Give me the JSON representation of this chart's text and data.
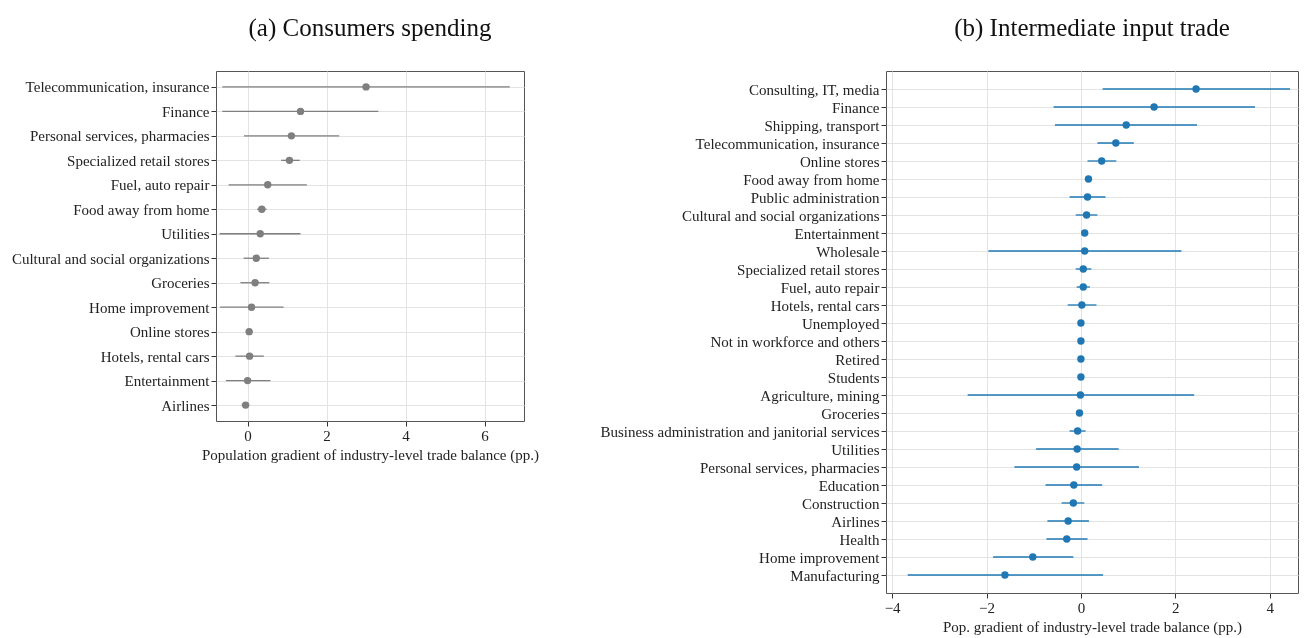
{
  "chart_data": [
    {
      "type": "scatter",
      "orientation": "horizontal",
      "title": "(a) Consumers spending",
      "xlabel": "Population gradient of industry-level trade balance (pp.)",
      "color": "#7f7f7f",
      "marker": "circle",
      "grid": true,
      "xlim": [
        -0.8,
        7.0
      ],
      "xticks": [
        0,
        2,
        4,
        6
      ],
      "categories": [
        "Telecommunication, insurance",
        "Finance",
        "Personal services, pharmacies",
        "Specialized retail stores",
        "Fuel, auto repair",
        "Food away from home",
        "Utilities",
        "Cultural and social organizations",
        "Groceries",
        "Home improvement",
        "Online stores",
        "Hotels, rental cars",
        "Entertainment",
        "Airlines"
      ],
      "values": [
        3.0,
        1.34,
        1.11,
        1.06,
        0.51,
        0.36,
        0.32,
        0.22,
        0.19,
        0.1,
        0.04,
        0.05,
        0.0,
        -0.05
      ],
      "errors": [
        [
          -0.64,
          6.64
        ],
        [
          -0.64,
          3.31
        ],
        [
          -0.09,
          2.32
        ],
        [
          0.85,
          1.32
        ],
        [
          -0.48,
          1.5
        ],
        [
          0.24,
          0.48
        ],
        [
          -0.71,
          1.34
        ],
        [
          -0.1,
          0.54
        ],
        [
          -0.18,
          0.55
        ],
        [
          -0.7,
          0.91
        ],
        [
          -0.04,
          0.12
        ],
        [
          -0.31,
          0.41
        ],
        [
          -0.55,
          0.58
        ],
        [
          -0.15,
          0.04
        ]
      ]
    },
    {
      "type": "scatter",
      "orientation": "horizontal",
      "title": "(b) Intermediate input trade",
      "xlabel": "Pop. gradient of industry-level trade balance (pp.)",
      "color": "#1f77b4",
      "marker": "circle",
      "grid": true,
      "xlim": [
        -4.13,
        4.6
      ],
      "xticks": [
        {
          "value": -4,
          "label": "−4"
        },
        {
          "value": -2,
          "label": "−2"
        },
        0,
        2,
        4
      ],
      "categories": [
        "Consulting, IT, media",
        "Finance",
        "Shipping, transport",
        "Telecommunication, insurance",
        "Online stores",
        "Food away from home",
        "Public administration",
        "Cultural and social organizations",
        "Entertainment",
        "Wholesale",
        "Specialized retail stores",
        "Fuel, auto repair",
        "Hotels, rental cars",
        "Unemployed",
        "Not in workforce and others",
        "Retired",
        "Students",
        "Agriculture, mining",
        "Groceries",
        "Business administration and janitorial services",
        "Utilities",
        "Personal services, pharmacies",
        "Education",
        "Construction",
        "Airlines",
        "Health",
        "Home improvement",
        "Manufacturing"
      ],
      "values": [
        2.44,
        1.55,
        0.96,
        0.74,
        0.44,
        0.16,
        0.14,
        0.12,
        0.08,
        0.08,
        0.05,
        0.05,
        0.02,
        0,
        0,
        0,
        0,
        -0.01,
        -0.03,
        -0.07,
        -0.08,
        -0.09,
        -0.15,
        -0.16,
        -0.27,
        -0.3,
        -1.02,
        -1.61
      ],
      "errors": [
        [
          0.46,
          4.43
        ],
        [
          -0.58,
          3.69
        ],
        [
          -0.55,
          2.46
        ],
        [
          0.35,
          1.12
        ],
        [
          0.14,
          0.75
        ],
        [
          0.1,
          0.22
        ],
        [
          -0.24,
          0.52
        ],
        [
          -0.11,
          0.35
        ],
        [
          0.01,
          0.14
        ],
        [
          -1.96,
          2.13
        ],
        [
          -0.11,
          0.22
        ],
        [
          -0.09,
          0.19
        ],
        [
          -0.28,
          0.33
        ],
        null,
        null,
        null,
        null,
        [
          -2.4,
          2.4
        ],
        [
          -0.1,
          0.02
        ],
        [
          -0.24,
          0.1
        ],
        [
          -0.95,
          0.8
        ],
        [
          -1.41,
          1.23
        ],
        [
          -0.75,
          0.45
        ],
        [
          -0.41,
          0.07
        ],
        [
          -0.71,
          0.17
        ],
        [
          -0.73,
          0.14
        ],
        [
          -1.86,
          -0.16
        ],
        [
          -3.67,
          0.47
        ]
      ]
    }
  ]
}
